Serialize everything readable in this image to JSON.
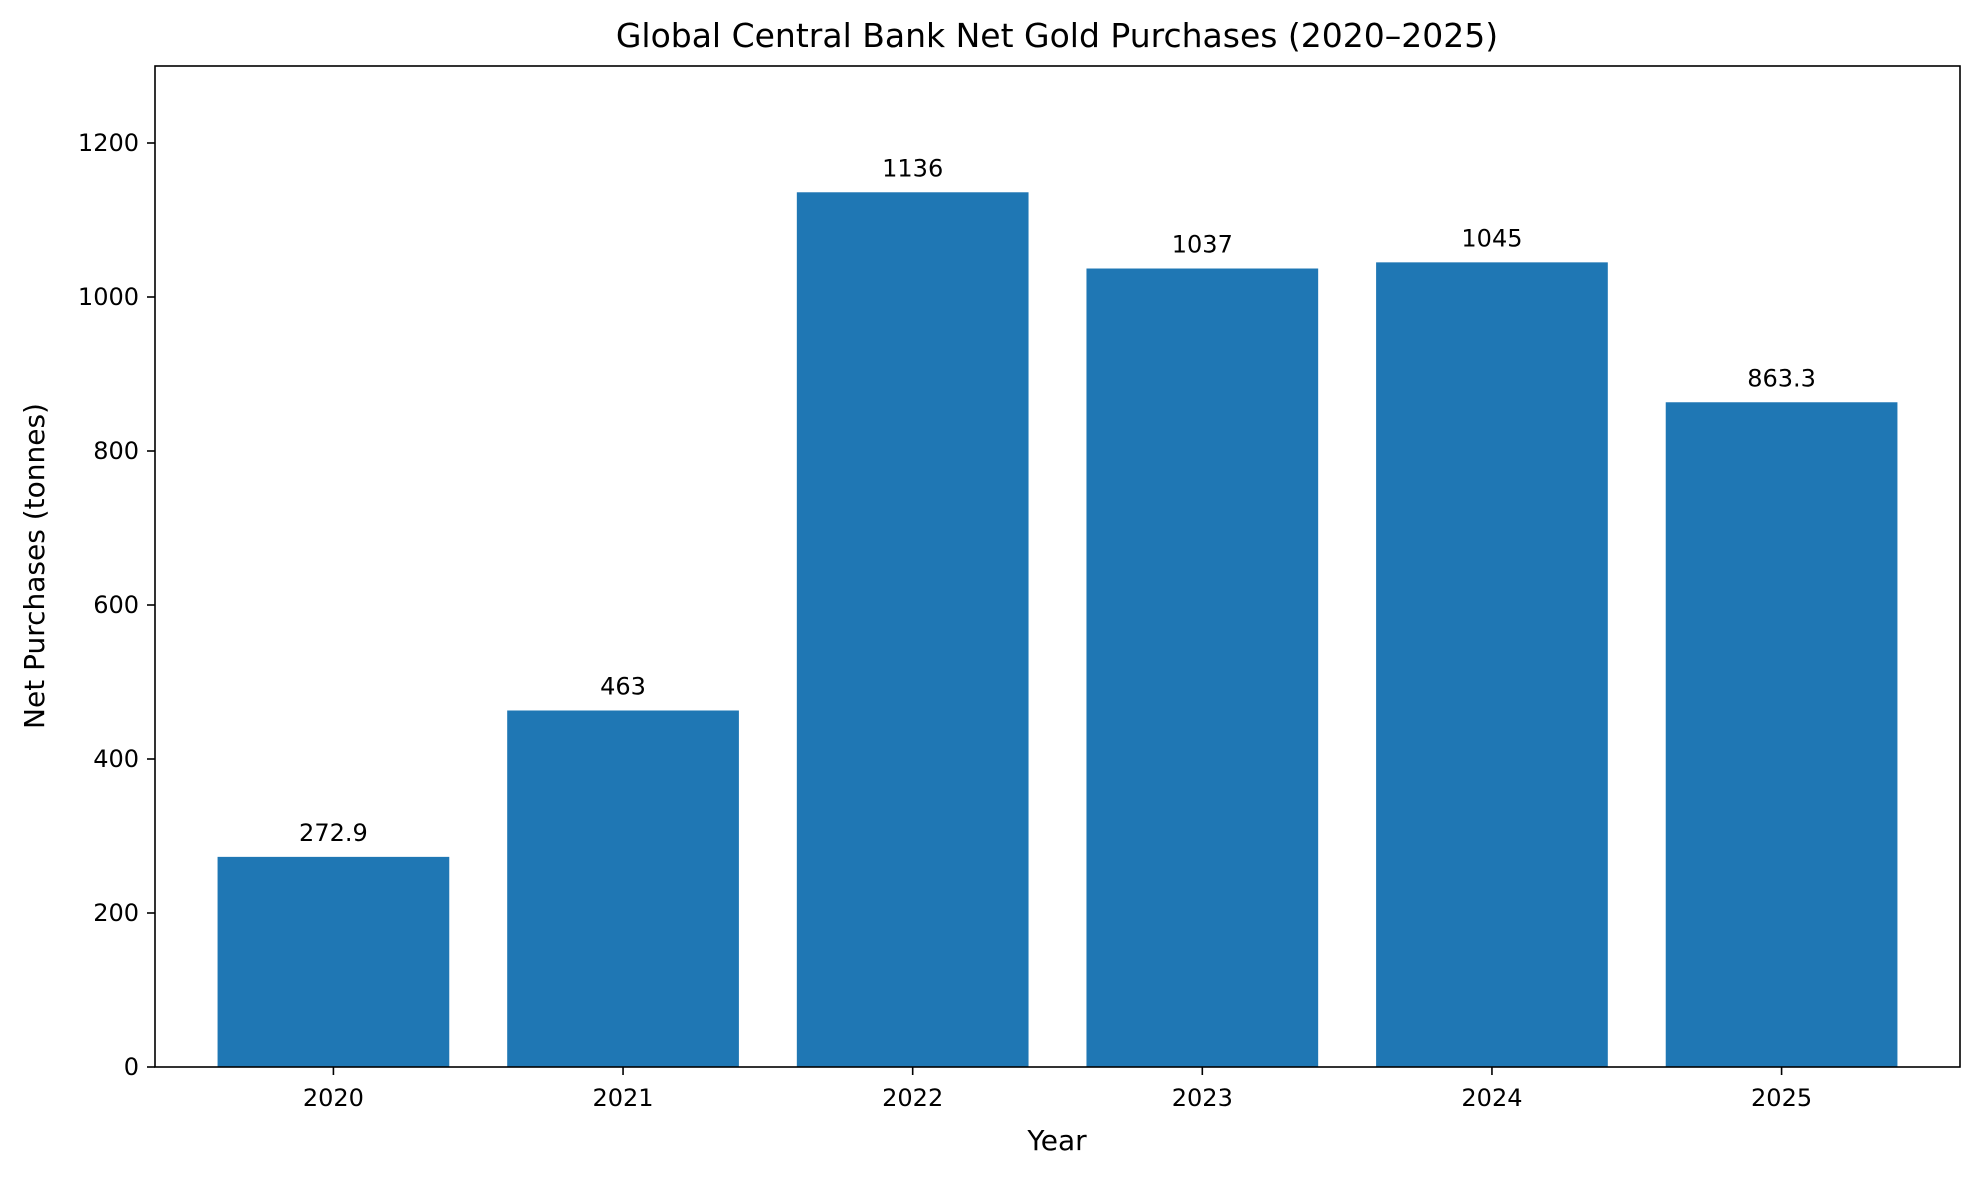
{
  "chart_data": {
    "type": "bar",
    "title": "Global Central Bank Net Gold Purchases (2020–2025)",
    "xlabel": "Year",
    "ylabel": "Net Purchases (tonnes)",
    "categories": [
      "2020",
      "2021",
      "2022",
      "2023",
      "2024",
      "2025"
    ],
    "values": [
      272.9,
      463,
      1136,
      1037,
      1045,
      863.3
    ],
    "value_labels": [
      "272.9",
      "463",
      "1136",
      "1037",
      "1045",
      "863.3"
    ],
    "ylim": [
      0,
      1300
    ],
    "yticks": [
      0,
      200,
      400,
      600,
      800,
      1000,
      1200
    ],
    "grid": false,
    "legend": "none",
    "bar_color": "#1f77b4"
  }
}
